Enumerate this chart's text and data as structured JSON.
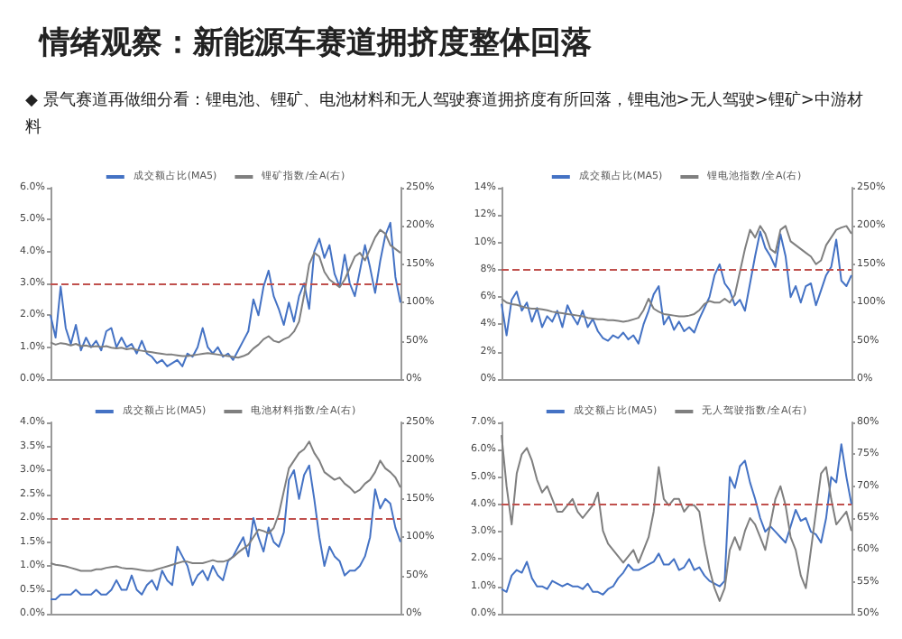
{
  "chart_data": [
    {
      "type": "line",
      "title": "情绪观察：新能源车赛道拥挤度整体回落",
      "subtitle": "◆ 景气赛道再做细分看：锂电池、锂矿、电池材料和无人驾驶赛道拥挤度有所回落，锂电池>无人驾驶>锂矿>中游材料",
      "legend": "top",
      "categories": [
        null,
        null,
        null,
        null,
        null,
        null,
        null,
        null,
        null,
        null,
        null,
        null,
        null,
        null,
        null,
        null,
        null,
        null,
        null,
        null,
        null,
        null,
        null,
        null,
        null,
        null,
        null,
        null,
        null,
        null,
        null,
        null,
        null,
        null,
        null,
        null,
        null,
        null,
        null,
        null,
        null,
        null,
        null,
        null,
        null,
        null,
        null,
        null,
        null,
        null,
        null,
        null,
        null,
        null,
        null,
        null,
        null,
        null,
        null,
        null,
        null,
        null,
        null,
        null,
        null,
        null,
        null,
        null,
        null,
        null
      ],
      "ylim": [
        0,
        6
      ],
      "yticks": [
        {
          "value": 0,
          "label": "0.0%"
        },
        {
          "value": 1,
          "label": "1.0%"
        },
        {
          "value": 2,
          "label": "2.0%"
        },
        {
          "value": 3,
          "label": "3.0%"
        },
        {
          "value": 4,
          "label": "4.0%"
        },
        {
          "value": 5,
          "label": "5.0%"
        },
        {
          "value": 6,
          "label": "6.0%"
        }
      ],
      "y2lim": [
        0,
        250
      ],
      "y2ticks": [
        {
          "value": 0,
          "label": "0%"
        },
        {
          "value": 50,
          "label": "50%"
        },
        {
          "value": 100,
          "label": "100%"
        },
        {
          "value": 150,
          "label": "150%"
        },
        {
          "value": 200,
          "label": "200%"
        },
        {
          "value": 250,
          "label": "250%"
        }
      ],
      "ref_lines": [
        {
          "axis": "y",
          "value": 3,
          "color": "#c0504d",
          "line_style": "dashed"
        }
      ],
      "series": [
        {
          "name": "成交额占比(MA5)",
          "color": "#4472c4",
          "values": [
            2.0,
            1.3,
            2.9,
            1.6,
            1.1,
            1.7,
            0.9,
            1.3,
            1.0,
            1.2,
            0.9,
            1.5,
            1.6,
            1.0,
            1.3,
            1.0,
            1.1,
            0.8,
            1.2,
            0.8,
            0.7,
            0.5,
            0.6,
            0.4,
            0.5,
            0.6,
            0.4,
            0.8,
            0.7,
            1.0,
            1.6,
            1.0,
            0.8,
            1.0,
            0.7,
            0.8,
            0.6,
            0.9,
            1.2,
            1.5,
            2.5,
            2.0,
            2.9,
            3.4,
            2.6,
            2.2,
            1.7,
            2.4,
            1.8,
            2.6,
            3.0,
            2.2,
            4.0,
            4.4,
            3.8,
            4.2,
            3.3,
            2.9,
            3.9,
            3.0,
            2.6,
            3.4,
            4.2,
            3.5,
            2.7,
            3.7,
            4.5,
            4.9,
            3.2,
            2.4
          ]
        },
        {
          "name": "锂矿指数/全A(右)",
          "color": "#7f7f7f",
          "axis": "y2",
          "values": [
            48,
            45,
            47,
            46,
            44,
            46,
            43,
            44,
            42,
            43,
            42,
            43,
            41,
            40,
            41,
            39,
            40,
            38,
            37,
            36,
            35,
            34,
            33,
            32,
            32,
            31,
            30,
            30,
            31,
            32,
            33,
            34,
            33,
            32,
            31,
            30,
            29,
            28,
            30,
            33,
            40,
            45,
            52,
            56,
            50,
            48,
            52,
            55,
            62,
            75,
            110,
            150,
            165,
            160,
            140,
            130,
            125,
            120,
            130,
            145,
            160,
            165,
            155,
            170,
            185,
            195,
            190,
            175,
            170,
            165
          ]
        }
      ]
    },
    {
      "type": "line",
      "legend": "top",
      "categories": [
        null,
        null,
        null,
        null,
        null,
        null,
        null,
        null,
        null,
        null,
        null,
        null,
        null,
        null,
        null,
        null,
        null,
        null,
        null,
        null,
        null,
        null,
        null,
        null,
        null,
        null,
        null,
        null,
        null,
        null,
        null,
        null,
        null,
        null,
        null,
        null,
        null,
        null,
        null,
        null,
        null,
        null,
        null,
        null,
        null,
        null,
        null,
        null,
        null,
        null,
        null,
        null,
        null,
        null,
        null,
        null,
        null,
        null,
        null,
        null,
        null,
        null,
        null,
        null,
        null,
        null,
        null,
        null,
        null,
        null
      ],
      "ylim": [
        0,
        14
      ],
      "yticks": [
        {
          "value": 0,
          "label": "0%"
        },
        {
          "value": 2,
          "label": "2%"
        },
        {
          "value": 4,
          "label": "4%"
        },
        {
          "value": 6,
          "label": "6%"
        },
        {
          "value": 8,
          "label": "8%"
        },
        {
          "value": 10,
          "label": "10%"
        },
        {
          "value": 12,
          "label": "12%"
        },
        {
          "value": 14,
          "label": "14%"
        }
      ],
      "y2lim": [
        0,
        250
      ],
      "y2ticks": [
        {
          "value": 0,
          "label": "0%"
        },
        {
          "value": 50,
          "label": "50%"
        },
        {
          "value": 100,
          "label": "100%"
        },
        {
          "value": 150,
          "label": "150%"
        },
        {
          "value": 200,
          "label": "200%"
        },
        {
          "value": 250,
          "label": "250%"
        }
      ],
      "ref_lines": [
        {
          "axis": "y",
          "value": 8,
          "color": "#c0504d",
          "line_style": "dashed"
        }
      ],
      "series": [
        {
          "name": "成交额占比(MA5)",
          "color": "#4472c4",
          "values": [
            5.5,
            3.2,
            5.8,
            6.4,
            5.0,
            5.6,
            4.2,
            5.2,
            3.8,
            4.6,
            4.2,
            5.0,
            3.8,
            5.4,
            4.6,
            4.0,
            5.0,
            3.8,
            4.4,
            3.5,
            3.0,
            2.8,
            3.2,
            3.0,
            3.4,
            2.9,
            3.2,
            2.6,
            4.0,
            5.0,
            6.2,
            6.8,
            4.0,
            4.6,
            3.6,
            4.2,
            3.5,
            3.8,
            3.4,
            4.4,
            5.2,
            6.0,
            7.6,
            8.4,
            7.0,
            6.5,
            5.4,
            5.8,
            5.0,
            7.0,
            9.0,
            10.8,
            9.6,
            9.0,
            8.2,
            10.6,
            9.0,
            6.0,
            6.8,
            5.6,
            6.8,
            7.0,
            5.4,
            6.5,
            7.6,
            8.2,
            10.2,
            7.2,
            6.8,
            7.6
          ]
        },
        {
          "name": "锂电池指数/全A(右)",
          "color": "#7f7f7f",
          "axis": "y2",
          "values": [
            105,
            100,
            98,
            97,
            95,
            93,
            92,
            92,
            91,
            90,
            88,
            87,
            86,
            85,
            84,
            83,
            82,
            80,
            79,
            78,
            78,
            77,
            77,
            76,
            75,
            76,
            78,
            80,
            90,
            105,
            92,
            88,
            85,
            84,
            83,
            82,
            82,
            83,
            85,
            90,
            98,
            102,
            100,
            100,
            105,
            100,
            110,
            140,
            170,
            195,
            185,
            200,
            190,
            170,
            165,
            195,
            200,
            180,
            175,
            170,
            165,
            160,
            150,
            155,
            175,
            185,
            195,
            198,
            200,
            190
          ]
        }
      ]
    },
    {
      "type": "line",
      "legend": "top",
      "categories": [
        null,
        null,
        null,
        null,
        null,
        null,
        null,
        null,
        null,
        null,
        null,
        null,
        null,
        null,
        null,
        null,
        null,
        null,
        null,
        null,
        null,
        null,
        null,
        null,
        null,
        null,
        null,
        null,
        null,
        null,
        null,
        null,
        null,
        null,
        null,
        null,
        null,
        null,
        null,
        null,
        null,
        null,
        null,
        null,
        null,
        null,
        null,
        null,
        null,
        null,
        null,
        null,
        null,
        null,
        null,
        null,
        null,
        null,
        null,
        null,
        null,
        null,
        null,
        null,
        null,
        null,
        null,
        null,
        null,
        null
      ],
      "ylim": [
        0,
        4
      ],
      "yticks": [
        {
          "value": 0,
          "label": "0.0%"
        },
        {
          "value": 0.5,
          "label": "0.5%"
        },
        {
          "value": 1,
          "label": "1.0%"
        },
        {
          "value": 1.5,
          "label": "1.5%"
        },
        {
          "value": 2,
          "label": "2.0%"
        },
        {
          "value": 2.5,
          "label": "2.5%"
        },
        {
          "value": 3,
          "label": "3.0%"
        },
        {
          "value": 3.5,
          "label": "3.5%"
        },
        {
          "value": 4,
          "label": "4.0%"
        }
      ],
      "y2lim": [
        0,
        250
      ],
      "y2ticks": [
        {
          "value": 0,
          "label": "0%"
        },
        {
          "value": 50,
          "label": "50%"
        },
        {
          "value": 100,
          "label": "100%"
        },
        {
          "value": 150,
          "label": "150%"
        },
        {
          "value": 200,
          "label": "200%"
        },
        {
          "value": 250,
          "label": "250%"
        }
      ],
      "ref_lines": [
        {
          "axis": "y",
          "value": 2,
          "color": "#c0504d",
          "line_style": "dashed"
        }
      ],
      "series": [
        {
          "name": "成交额占比(MA5)",
          "color": "#4472c4",
          "values": [
            0.3,
            0.3,
            0.4,
            0.4,
            0.4,
            0.5,
            0.4,
            0.4,
            0.4,
            0.5,
            0.4,
            0.4,
            0.5,
            0.7,
            0.5,
            0.5,
            0.8,
            0.5,
            0.4,
            0.6,
            0.7,
            0.5,
            0.9,
            0.7,
            0.6,
            1.4,
            1.2,
            1.0,
            0.6,
            0.8,
            0.9,
            0.7,
            1.0,
            0.8,
            0.7,
            1.1,
            1.2,
            1.4,
            1.6,
            1.2,
            2.0,
            1.6,
            1.3,
            1.8,
            1.5,
            1.4,
            1.7,
            2.8,
            3.0,
            2.4,
            2.9,
            3.1,
            2.4,
            1.6,
            1.0,
            1.4,
            1.2,
            1.1,
            0.8,
            0.9,
            0.9,
            1.0,
            1.2,
            1.6,
            2.6,
            2.2,
            2.4,
            2.3,
            1.8,
            1.5
          ]
        },
        {
          "name": "电池材料指数/全A(右)",
          "color": "#7f7f7f",
          "axis": "y2",
          "values": [
            66,
            64,
            63,
            62,
            60,
            58,
            56,
            56,
            56,
            58,
            58,
            60,
            61,
            62,
            60,
            59,
            59,
            58,
            57,
            56,
            56,
            58,
            60,
            62,
            64,
            66,
            68,
            68,
            66,
            66,
            66,
            68,
            70,
            68,
            68,
            70,
            74,
            80,
            85,
            90,
            100,
            110,
            108,
            105,
            112,
            130,
            160,
            190,
            200,
            210,
            215,
            225,
            210,
            200,
            185,
            180,
            175,
            178,
            170,
            165,
            158,
            162,
            170,
            175,
            185,
            200,
            190,
            185,
            178,
            165
          ]
        }
      ]
    },
    {
      "type": "line",
      "legend": "top",
      "categories": [
        null,
        null,
        null,
        null,
        null,
        null,
        null,
        null,
        null,
        null,
        null,
        null,
        null,
        null,
        null,
        null,
        null,
        null,
        null,
        null,
        null,
        null,
        null,
        null,
        null,
        null,
        null,
        null,
        null,
        null,
        null,
        null,
        null,
        null,
        null,
        null,
        null,
        null,
        null,
        null,
        null,
        null,
        null,
        null,
        null,
        null,
        null,
        null,
        null,
        null,
        null,
        null,
        null,
        null,
        null,
        null,
        null,
        null,
        null,
        null,
        null,
        null,
        null,
        null,
        null,
        null,
        null,
        null,
        null,
        null
      ],
      "ylim": [
        0,
        7
      ],
      "yticks": [
        {
          "value": 0,
          "label": "0.0%"
        },
        {
          "value": 1,
          "label": "1.0%"
        },
        {
          "value": 2,
          "label": "2.0%"
        },
        {
          "value": 3,
          "label": "3.0%"
        },
        {
          "value": 4,
          "label": "4.0%"
        },
        {
          "value": 5,
          "label": "5.0%"
        },
        {
          "value": 6,
          "label": "6.0%"
        },
        {
          "value": 7,
          "label": "7.0%"
        }
      ],
      "y2lim": [
        50,
        80
      ],
      "y2ticks": [
        {
          "value": 50,
          "label": "50%"
        },
        {
          "value": 55,
          "label": "55%"
        },
        {
          "value": 60,
          "label": "60%"
        },
        {
          "value": 65,
          "label": "65%"
        },
        {
          "value": 70,
          "label": "70%"
        },
        {
          "value": 75,
          "label": "75%"
        },
        {
          "value": 80,
          "label": "80%"
        }
      ],
      "ref_lines": [
        {
          "axis": "y",
          "value": 4,
          "color": "#c0504d",
          "line_style": "dashed"
        }
      ],
      "series": [
        {
          "name": "成交额占比(MA5)",
          "color": "#4472c4",
          "values": [
            0.9,
            0.8,
            1.4,
            1.6,
            1.5,
            1.9,
            1.3,
            1.0,
            1.0,
            0.9,
            1.2,
            1.1,
            1.0,
            1.1,
            1.0,
            1.0,
            0.9,
            1.1,
            0.8,
            0.8,
            0.7,
            0.9,
            1.0,
            1.3,
            1.5,
            1.8,
            1.6,
            1.6,
            1.7,
            1.8,
            1.9,
            2.2,
            1.8,
            1.8,
            2.0,
            1.6,
            1.7,
            2.0,
            1.6,
            1.7,
            1.4,
            1.2,
            1.1,
            1.0,
            1.2,
            5.0,
            4.6,
            5.4,
            5.6,
            4.8,
            4.2,
            3.5,
            3.0,
            3.2,
            3.0,
            2.8,
            2.6,
            3.2,
            3.8,
            3.4,
            3.5,
            3.0,
            2.9,
            2.6,
            3.5,
            5.0,
            4.8,
            6.2,
            5.0,
            4.0
          ]
        },
        {
          "name": "无人驾驶指数/全A(右)",
          "color": "#7f7f7f",
          "axis": "y2",
          "values": [
            78,
            70,
            64,
            72,
            75,
            76,
            74,
            71,
            69,
            70,
            68,
            66,
            66,
            67,
            68,
            66,
            65,
            66,
            67,
            69,
            63,
            61,
            60,
            59,
            58,
            59,
            60,
            58,
            60,
            62,
            66,
            73,
            68,
            67,
            68,
            68,
            66,
            67,
            67,
            66,
            61,
            57,
            54,
            52,
            54,
            60,
            62,
            60,
            63,
            65,
            64,
            62,
            60,
            64,
            68,
            70,
            67,
            62,
            60,
            56,
            54,
            60,
            66,
            72,
            73,
            68,
            64,
            65,
            66,
            63
          ]
        }
      ]
    }
  ]
}
